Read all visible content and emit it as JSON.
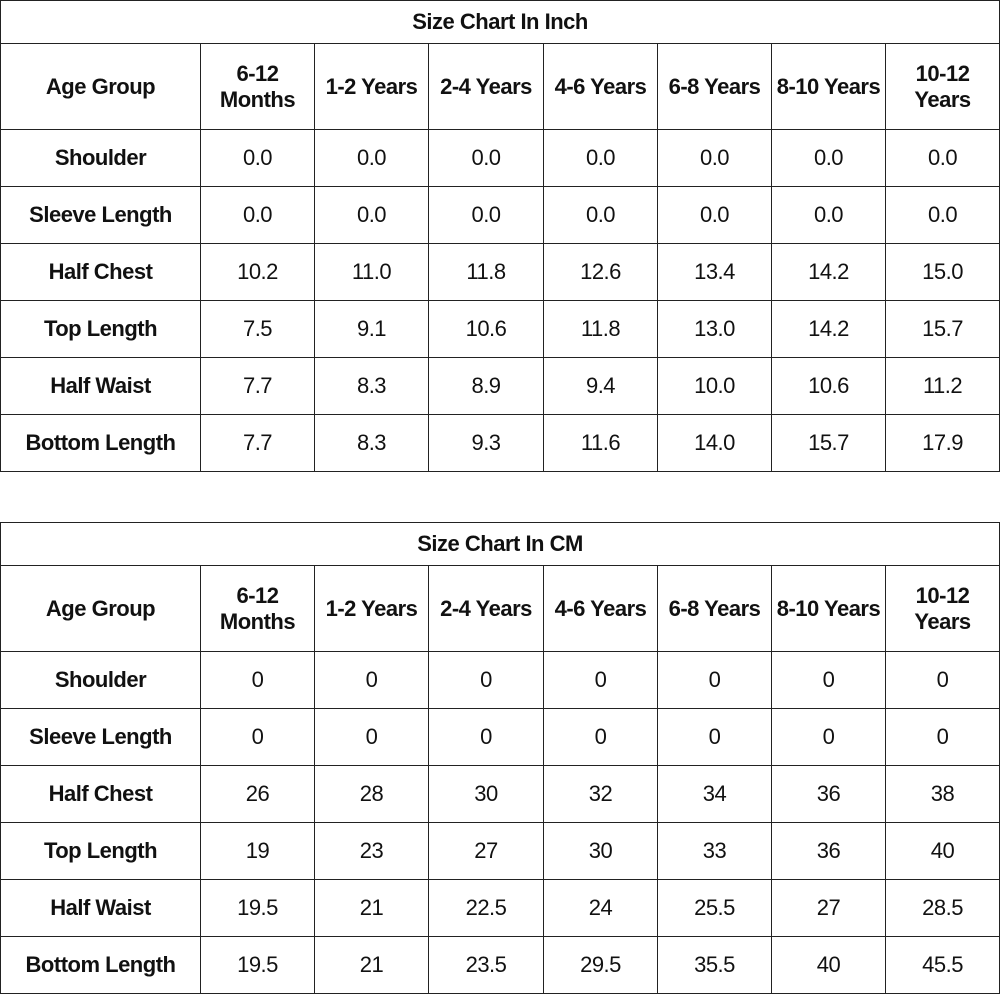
{
  "tables": [
    {
      "title": "Size Chart In Inch",
      "header": [
        "Age Group",
        "6-12 Months",
        "1-2 Years",
        "2-4 Years",
        "4-6 Years",
        "6-8 Years",
        "8-10 Years",
        "10-12 Years"
      ],
      "rows": [
        [
          "Shoulder",
          "0.0",
          "0.0",
          "0.0",
          "0.0",
          "0.0",
          "0.0",
          "0.0"
        ],
        [
          "Sleeve Length",
          "0.0",
          "0.0",
          "0.0",
          "0.0",
          "0.0",
          "0.0",
          "0.0"
        ],
        [
          "Half Chest",
          "10.2",
          "11.0",
          "11.8",
          "12.6",
          "13.4",
          "14.2",
          "15.0"
        ],
        [
          "Top Length",
          "7.5",
          "9.1",
          "10.6",
          "11.8",
          "13.0",
          "14.2",
          "15.7"
        ],
        [
          "Half Waist",
          "7.7",
          "8.3",
          "8.9",
          "9.4",
          "10.0",
          "10.6",
          "11.2"
        ],
        [
          "Bottom Length",
          "7.7",
          "8.3",
          "9.3",
          "11.6",
          "14.0",
          "15.7",
          "17.9"
        ]
      ]
    },
    {
      "title": "Size Chart In CM",
      "header": [
        "Age Group",
        "6-12 Months",
        "1-2 Years",
        "2-4 Years",
        "4-6 Years",
        "6-8 Years",
        "8-10 Years",
        "10-12 Years"
      ],
      "rows": [
        [
          "Shoulder",
          "0",
          "0",
          "0",
          "0",
          "0",
          "0",
          "0"
        ],
        [
          "Sleeve Length",
          "0",
          "0",
          "0",
          "0",
          "0",
          "0",
          "0"
        ],
        [
          "Half Chest",
          "26",
          "28",
          "30",
          "32",
          "34",
          "36",
          "38"
        ],
        [
          "Top Length",
          "19",
          "23",
          "27",
          "30",
          "33",
          "36",
          "40"
        ],
        [
          "Half Waist",
          "19.5",
          "21",
          "22.5",
          "24",
          "25.5",
          "27",
          "28.5"
        ],
        [
          "Bottom Length",
          "19.5",
          "21",
          "23.5",
          "29.5",
          "35.5",
          "40",
          "45.5"
        ]
      ]
    }
  ]
}
